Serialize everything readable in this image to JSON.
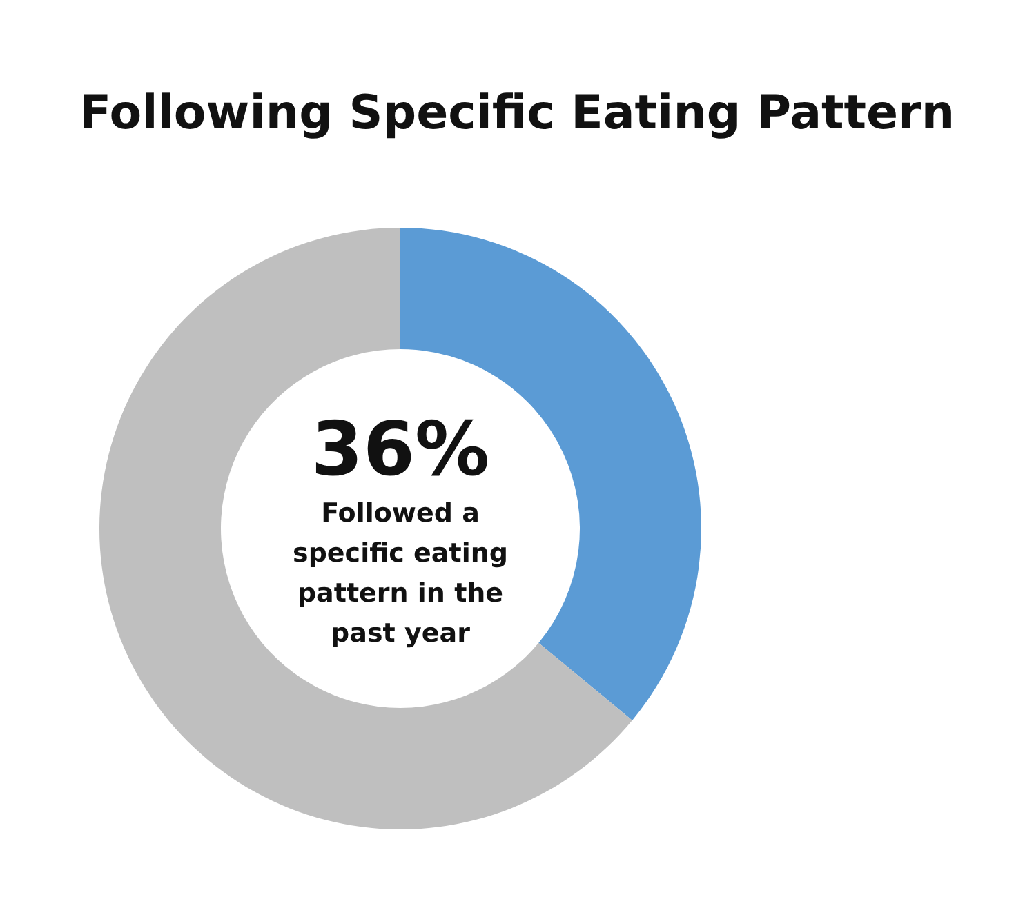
{
  "chart_data": {
    "type": "donut",
    "title": "Following Specific Eating Pattern",
    "categories": [
      null,
      null
    ],
    "values": [
      36,
      64
    ],
    "colors": [
      "#5b9bd5",
      "#bfbfbf"
    ],
    "value_labels": [
      "36%",
      null
    ],
    "annotations": [
      "Followed a specific eating pattern in the past year"
    ],
    "legend": false
  }
}
